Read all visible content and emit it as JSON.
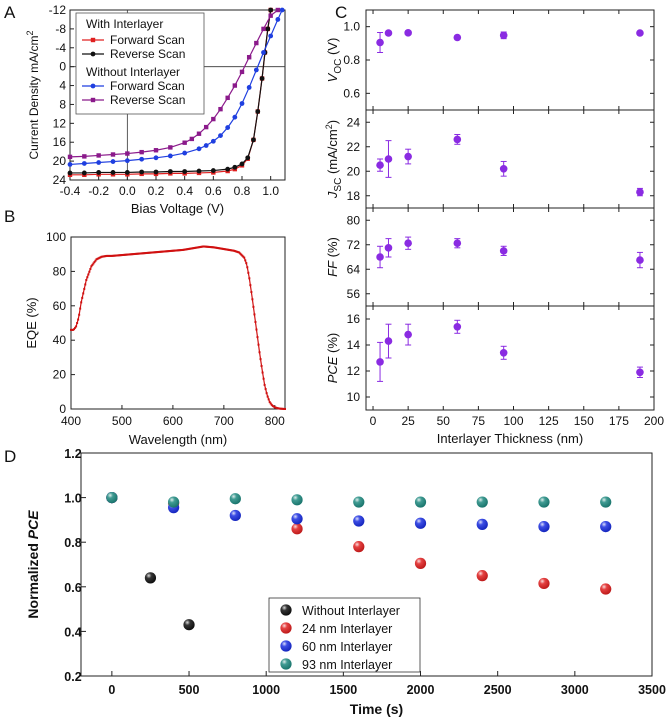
{
  "chart_data": [
    {
      "panel": "A",
      "type": "line",
      "xlabel": "Bias Voltage (V)",
      "ylabel": "Current Density mA/cm",
      "ylabel_sup": "2",
      "xlim": [
        -0.4,
        1.1
      ],
      "ylim": [
        24,
        -12
      ],
      "xticks": [
        -0.4,
        -0.2,
        0.0,
        0.2,
        0.4,
        0.6,
        0.8,
        1.0
      ],
      "xtick_labels": [
        "-0.4",
        "-0.2",
        "0.0",
        "0.2",
        "0.4",
        "0.6",
        "0.8",
        "1.0"
      ],
      "yticks": [
        -12,
        -8,
        -4,
        0,
        4,
        8,
        12,
        16,
        20,
        24
      ],
      "ytick_labels": [
        "-12",
        "-8",
        "-4",
        "0",
        "4",
        "8",
        "12",
        "16",
        "20",
        "24"
      ],
      "legend_group1": "With Interlayer",
      "legend_group2": "Without Interlayer",
      "series": [
        {
          "name": "Forward Scan",
          "group": "With Interlayer",
          "color": "#e02020",
          "marker": "square",
          "x": [
            -0.4,
            -0.3,
            -0.2,
            -0.1,
            0.0,
            0.1,
            0.2,
            0.3,
            0.4,
            0.5,
            0.6,
            0.7,
            0.75,
            0.8,
            0.84,
            0.88,
            0.91,
            0.94,
            0.96,
            0.98,
            1.0
          ],
          "y": [
            22.9,
            22.9,
            22.8,
            22.8,
            22.8,
            22.7,
            22.7,
            22.6,
            22.6,
            22.5,
            22.4,
            22.1,
            21.7,
            20.9,
            19.5,
            15.5,
            9.5,
            2.5,
            -3.0,
            -8.0,
            -12.0
          ]
        },
        {
          "name": "Reverse Scan",
          "group": "With Interlayer",
          "color": "#111111",
          "marker": "circle",
          "x": [
            -0.4,
            -0.3,
            -0.2,
            -0.1,
            0.0,
            0.1,
            0.2,
            0.3,
            0.4,
            0.5,
            0.6,
            0.7,
            0.75,
            0.8,
            0.84,
            0.88,
            0.91,
            0.94,
            0.96,
            0.98,
            1.0
          ],
          "y": [
            22.5,
            22.5,
            22.4,
            22.4,
            22.4,
            22.3,
            22.3,
            22.2,
            22.2,
            22.1,
            22.0,
            21.7,
            21.3,
            20.6,
            19.3,
            15.5,
            9.5,
            2.5,
            -3.0,
            -8.0,
            -12.0
          ]
        },
        {
          "name": "Forward Scan",
          "group": "Without Interlayer",
          "color": "#1f3fe0",
          "marker": "circle",
          "x": [
            -0.4,
            -0.3,
            -0.2,
            -0.1,
            0.0,
            0.1,
            0.2,
            0.3,
            0.4,
            0.5,
            0.55,
            0.6,
            0.65,
            0.7,
            0.75,
            0.8,
            0.85,
            0.9,
            0.95,
            1.0,
            1.05,
            1.08
          ],
          "y": [
            20.7,
            20.5,
            20.3,
            20.1,
            19.9,
            19.6,
            19.3,
            18.9,
            18.3,
            17.4,
            16.7,
            15.8,
            14.6,
            12.9,
            10.7,
            7.8,
            4.4,
            0.7,
            -3.0,
            -6.5,
            -10.0,
            -12.0
          ]
        },
        {
          "name": "Reverse Scan",
          "group": "Without Interlayer",
          "color": "#8b1a8b",
          "marker": "square",
          "x": [
            -0.4,
            -0.3,
            -0.2,
            -0.1,
            0.0,
            0.1,
            0.2,
            0.3,
            0.4,
            0.45,
            0.5,
            0.55,
            0.6,
            0.65,
            0.7,
            0.75,
            0.8,
            0.85,
            0.9,
            0.95,
            1.0,
            1.05
          ],
          "y": [
            19.1,
            19.0,
            18.8,
            18.6,
            18.4,
            18.1,
            17.7,
            17.1,
            16.1,
            15.3,
            14.2,
            12.8,
            11.1,
            9.0,
            6.6,
            4.0,
            1.1,
            -2.0,
            -5.0,
            -8.0,
            -10.8,
            -12.0
          ]
        }
      ]
    },
    {
      "panel": "B",
      "type": "line",
      "xlabel": "Wavelength (nm)",
      "ylabel": "EQE (%)",
      "xlim": [
        400,
        820
      ],
      "ylim": [
        0,
        100
      ],
      "xticks": [
        400,
        500,
        600,
        700,
        800
      ],
      "xtick_labels": [
        "400",
        "500",
        "600",
        "700",
        "800"
      ],
      "yticks": [
        0,
        20,
        40,
        60,
        80,
        100
      ],
      "ytick_labels": [
        "0",
        "20",
        "40",
        "60",
        "80",
        "100"
      ],
      "color": "#d01010",
      "x": [
        400,
        405,
        410,
        415,
        420,
        430,
        440,
        450,
        460,
        470,
        480,
        500,
        520,
        540,
        560,
        580,
        600,
        620,
        640,
        660,
        680,
        700,
        710,
        720,
        730,
        740,
        745,
        750,
        755,
        760,
        765,
        770,
        775,
        780,
        785,
        790,
        795,
        800,
        805,
        810,
        815,
        820
      ],
      "y": [
        46,
        46,
        48,
        53,
        62,
        75,
        83,
        87,
        88.5,
        89,
        89,
        89.5,
        90,
        90.5,
        91,
        91.5,
        92,
        92.5,
        93.5,
        94.5,
        94,
        93,
        92.5,
        92,
        91,
        88,
        84,
        76,
        66,
        55,
        44,
        33,
        23,
        14,
        8,
        4,
        2,
        1,
        0.5,
        0.2,
        0.1,
        0
      ],
      "sampling_step": 2
    },
    {
      "panel": "C",
      "type": "scatter",
      "xlabel": "Interlayer Thickness (nm)",
      "xlim": [
        -5,
        200
      ],
      "xticks": [
        0,
        25,
        50,
        75,
        100,
        125,
        150,
        175,
        200
      ],
      "xtick_labels": [
        "0",
        "25",
        "50",
        "75",
        "100",
        "125",
        "150",
        "175",
        "200"
      ],
      "color": "#8a2be2",
      "x": [
        5,
        11,
        25,
        60,
        93,
        190
      ],
      "subplots": [
        {
          "ylabel": "V",
          "ylabel_sub": "OC",
          "ylabel_unit": " (V)",
          "ylim": [
            0.5,
            1.1
          ],
          "yticks": [
            0.6,
            0.8,
            1.0
          ],
          "ytick_labels": [
            "0.6",
            "0.8",
            "1.0"
          ],
          "values": [
            0.905,
            0.962,
            0.963,
            0.935,
            0.948,
            0.962
          ],
          "errors": [
            0.06,
            0.01,
            0.01,
            0.01,
            0.02,
            0.005
          ]
        },
        {
          "ylabel": "J",
          "ylabel_sub": "SC",
          "ylabel_unit": " (mA/cm",
          "ylabel_sup": "2",
          "ylabel_end": ")",
          "ylim": [
            17,
            25
          ],
          "yticks": [
            18,
            20,
            22,
            24
          ],
          "ytick_labels": [
            "18",
            "20",
            "22",
            "24"
          ],
          "values": [
            20.5,
            21.0,
            21.2,
            22.6,
            20.2,
            18.3
          ],
          "errors": [
            0.5,
            1.5,
            0.6,
            0.4,
            0.6,
            0.3
          ]
        },
        {
          "ylabel": "FF",
          "ylabel_unit": " (%)",
          "ylim": [
            52,
            84
          ],
          "yticks": [
            56,
            64,
            72,
            80
          ],
          "ytick_labels": [
            "56",
            "64",
            "72",
            "80"
          ],
          "values": [
            68.0,
            71.0,
            72.5,
            72.5,
            70.0,
            67.0
          ],
          "errors": [
            3.5,
            3.0,
            2.0,
            1.5,
            1.5,
            2.5
          ]
        },
        {
          "ylabel": "PCE",
          "ylabel_unit": " (%)",
          "ylim": [
            9,
            17
          ],
          "yticks": [
            10,
            12,
            14,
            16
          ],
          "ytick_labels": [
            "10",
            "12",
            "14",
            "16"
          ],
          "values": [
            12.7,
            14.3,
            14.8,
            15.4,
            13.4,
            11.9
          ],
          "errors": [
            1.5,
            1.3,
            0.8,
            0.5,
            0.5,
            0.4
          ]
        }
      ],
      "panel_labels": [
        "A",
        "B",
        "C",
        "D"
      ]
    },
    {
      "panel": "D",
      "type": "scatter",
      "xlabel": "Time (s)",
      "ylabel": "Normalized ",
      "ylabel_italic": "PCE",
      "xlim": [
        -200,
        3500
      ],
      "ylim": [
        0.2,
        1.2
      ],
      "xticks": [
        0,
        500,
        1000,
        1500,
        2000,
        2500,
        3000,
        3500
      ],
      "xtick_labels": [
        "0",
        "500",
        "1000",
        "1500",
        "2000",
        "2500",
        "3000",
        "3500"
      ],
      "yticks": [
        0.2,
        0.4,
        0.6,
        0.8,
        1.0,
        1.2
      ],
      "ytick_labels": [
        "0.2",
        "0.4",
        "0.6",
        "0.8",
        "1.0",
        "1.2"
      ],
      "legend_position": "bottom-center",
      "series": [
        {
          "name": "Without Interlayer",
          "color": "#111111",
          "x": [
            0,
            250,
            500
          ],
          "y": [
            1.0,
            0.64,
            0.43
          ]
        },
        {
          "name": "24 nm Interlayer",
          "color": "#e02020",
          "x": [
            0,
            400,
            1200,
            1600,
            2000,
            2400,
            2800,
            3200
          ],
          "y": [
            1.0,
            0.975,
            0.86,
            0.78,
            0.705,
            0.65,
            0.615,
            0.59
          ]
        },
        {
          "name": "60 nm Interlayer",
          "color": "#1a2ee0",
          "x": [
            0,
            400,
            800,
            1200,
            1600,
            2000,
            2400,
            2800,
            3200
          ],
          "y": [
            1.0,
            0.955,
            0.92,
            0.905,
            0.895,
            0.885,
            0.88,
            0.87,
            0.87
          ]
        },
        {
          "name": "93 nm Interlayer",
          "color": "#1f8a80",
          "x": [
            0,
            400,
            800,
            1200,
            1600,
            2000,
            2400,
            2800,
            3200
          ],
          "y": [
            1.0,
            0.98,
            0.995,
            0.99,
            0.98,
            0.98,
            0.98,
            0.98,
            0.98
          ]
        }
      ]
    }
  ]
}
